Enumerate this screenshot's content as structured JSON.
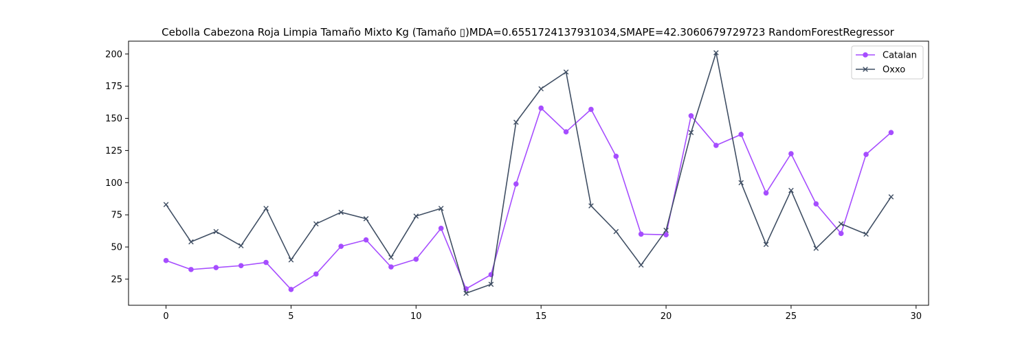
{
  "chart_data": {
    "type": "line",
    "title": "Cebolla Cabezona Roja Limpia Tamaño Mixto Kg (Tamaño ▯)MDA=0.6551724137931034,SMAPE=42.3060679729723 RandomForestRegressor",
    "xlabel": "",
    "ylabel": "",
    "xlim": [
      -1.5,
      30.5
    ],
    "ylim": [
      4.7,
      210
    ],
    "x_ticks": [
      0,
      5,
      10,
      15,
      20,
      25,
      30
    ],
    "y_ticks": [
      25,
      50,
      75,
      100,
      125,
      150,
      175,
      200
    ],
    "grid": false,
    "legend_position": "top-right",
    "x": [
      0,
      1,
      2,
      3,
      4,
      5,
      6,
      7,
      8,
      9,
      10,
      11,
      12,
      13,
      14,
      15,
      16,
      17,
      18,
      19,
      20,
      21,
      22,
      23,
      24,
      25,
      26,
      27,
      28,
      29
    ],
    "series": [
      {
        "name": "Catalan",
        "color": "#a64dff",
        "marker": "circle",
        "values": [
          39.5,
          32.5,
          34,
          35.5,
          38,
          17,
          29,
          50.5,
          55.5,
          34.5,
          40.5,
          64.5,
          17.5,
          28.5,
          99,
          158,
          139.5,
          157,
          120.5,
          60,
          59.5,
          152,
          129,
          137.5,
          92,
          122.5,
          83.5,
          60.5,
          122,
          139
        ]
      },
      {
        "name": "Oxxo",
        "color": "#3f4e63",
        "marker": "x",
        "values": [
          83,
          54,
          62,
          51,
          80,
          40,
          68,
          77,
          72,
          42,
          74,
          80,
          14,
          21,
          147,
          173,
          186,
          82,
          62,
          36,
          63,
          139,
          201,
          100,
          52,
          94,
          49,
          68,
          60,
          89
        ]
      }
    ]
  }
}
